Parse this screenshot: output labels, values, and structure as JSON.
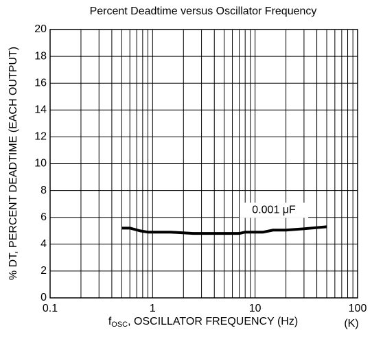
{
  "chart_data": {
    "type": "line",
    "title": "Percent Deadtime versus Oscillator Frequency",
    "x_label": {
      "main": "f",
      "sub": "OSC",
      "rest": ", OSCILLATOR FREQUENCY (Hz)"
    },
    "x_unit_note": "(K)",
    "y_label": "% DT, PERCENT DEADTIME (EACH OUTPUT)",
    "x_scale": "log",
    "xlim": [
      0.1,
      100
    ],
    "xticks": [
      0.1,
      1,
      10,
      100
    ],
    "ylim": [
      0,
      20
    ],
    "yticks": [
      0,
      2,
      4,
      6,
      8,
      10,
      12,
      14,
      16,
      18,
      20
    ],
    "grid": true,
    "x": [
      0.5,
      0.6,
      0.75,
      0.9,
      1.5,
      2.5,
      5,
      7,
      8,
      12,
      15,
      20,
      30,
      50
    ],
    "series": [
      {
        "name": "0.001 μF",
        "color": "#000000",
        "values": [
          5.2,
          5.2,
          5.0,
          4.9,
          4.9,
          4.8,
          4.8,
          4.8,
          4.9,
          4.9,
          5.05,
          5.05,
          5.15,
          5.3
        ]
      }
    ]
  }
}
